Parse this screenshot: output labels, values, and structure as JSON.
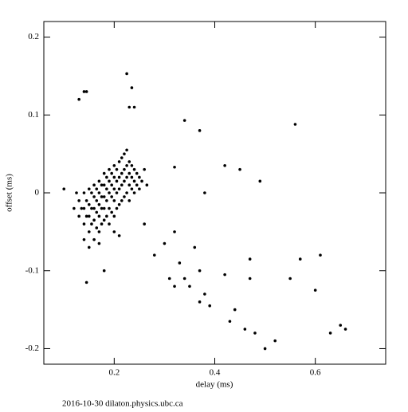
{
  "chart_data": {
    "type": "scatter",
    "x_label": "delay (ms)",
    "y_label": "offset (ms)",
    "annotation": "2016-10-30  dilaton.physics.ubc.ca",
    "xlim": [
      0.06,
      0.74
    ],
    "ylim": [
      -0.22,
      0.22
    ],
    "xticks": [
      0.2,
      0.4,
      0.6
    ],
    "yticks": [
      -0.2,
      -0.1,
      0,
      0.1,
      0.2
    ],
    "color": "#000000",
    "x": [
      0.13,
      0.13,
      0.135,
      0.14,
      0.14,
      0.14,
      0.145,
      0.145,
      0.15,
      0.15,
      0.15,
      0.15,
      0.155,
      0.155,
      0.155,
      0.16,
      0.16,
      0.16,
      0.16,
      0.16,
      0.165,
      0.165,
      0.165,
      0.165,
      0.17,
      0.17,
      0.17,
      0.17,
      0.17,
      0.175,
      0.175,
      0.175,
      0.175,
      0.18,
      0.18,
      0.18,
      0.18,
      0.18,
      0.185,
      0.185,
      0.185,
      0.185,
      0.19,
      0.19,
      0.19,
      0.19,
      0.19,
      0.195,
      0.195,
      0.195,
      0.195,
      0.2,
      0.2,
      0.2,
      0.2,
      0.2,
      0.205,
      0.205,
      0.205,
      0.205,
      0.21,
      0.21,
      0.21,
      0.21,
      0.215,
      0.215,
      0.215,
      0.215,
      0.22,
      0.22,
      0.22,
      0.22,
      0.225,
      0.225,
      0.225,
      0.225,
      0.23,
      0.23,
      0.23,
      0.23,
      0.235,
      0.235,
      0.235,
      0.24,
      0.24,
      0.24,
      0.245,
      0.245,
      0.25,
      0.25,
      0.255,
      0.26,
      0.265,
      0.12,
      0.125,
      0.14,
      0.15,
      0.17,
      0.2,
      0.21,
      0.13,
      0.14,
      0.145,
      0.225,
      0.23,
      0.235,
      0.24,
      0.18,
      0.145,
      0.1,
      0.34,
      0.37,
      0.56,
      0.42,
      0.45,
      0.49,
      0.32,
      0.38,
      0.3,
      0.32,
      0.33,
      0.31,
      0.32,
      0.34,
      0.36,
      0.37,
      0.35,
      0.37,
      0.38,
      0.39,
      0.42,
      0.44,
      0.43,
      0.46,
      0.47,
      0.48,
      0.5,
      0.52,
      0.55,
      0.57,
      0.61,
      0.6,
      0.63,
      0.65,
      0.66,
      0.47,
      0.28,
      0.26
    ],
    "y": [
      -0.03,
      -0.01,
      -0.02,
      -0.04,
      -0.02,
      0,
      -0.03,
      -0.01,
      -0.05,
      -0.03,
      -0.015,
      0.005,
      -0.04,
      -0.02,
      0,
      -0.06,
      -0.035,
      -0.02,
      -0.005,
      0.01,
      -0.045,
      -0.025,
      -0.01,
      0.005,
      -0.05,
      -0.03,
      -0.015,
      0,
      0.015,
      -0.04,
      -0.02,
      -0.005,
      0.01,
      -0.035,
      -0.02,
      -0.005,
      0.01,
      0.025,
      -0.03,
      -0.01,
      0.005,
      0.02,
      -0.04,
      -0.02,
      0,
      0.015,
      0.03,
      -0.025,
      -0.005,
      0.01,
      0.025,
      -0.03,
      -0.01,
      0.005,
      0.02,
      0.035,
      -0.02,
      0,
      0.015,
      0.03,
      -0.015,
      0.005,
      0.02,
      0.04,
      -0.01,
      0.01,
      0.025,
      0.045,
      -0.005,
      0.015,
      0.03,
      0.05,
      0,
      0.02,
      0.035,
      0.055,
      -0.01,
      0.01,
      0.025,
      0.04,
      0.005,
      0.02,
      0.035,
      0,
      0.015,
      0.03,
      0.01,
      0.025,
      0.005,
      0.02,
      0.015,
      0.03,
      0.01,
      -0.02,
      0,
      -0.06,
      -0.07,
      -0.065,
      -0.05,
      -0.055,
      0.12,
      0.13,
      0.13,
      0.153,
      0.11,
      0.135,
      0.11,
      -0.1,
      -0.115,
      0.005,
      0.093,
      0.08,
      0.088,
      0.035,
      0.03,
      0.015,
      0.033,
      0,
      -0.065,
      -0.05,
      -0.09,
      -0.11,
      -0.12,
      -0.11,
      -0.07,
      -0.1,
      -0.12,
      -0.14,
      -0.13,
      -0.145,
      -0.105,
      -0.15,
      -0.165,
      -0.175,
      -0.11,
      -0.18,
      -0.2,
      -0.19,
      -0.11,
      -0.085,
      -0.08,
      -0.125,
      -0.18,
      -0.17,
      -0.175,
      -0.085,
      -0.08,
      -0.04
    ]
  }
}
